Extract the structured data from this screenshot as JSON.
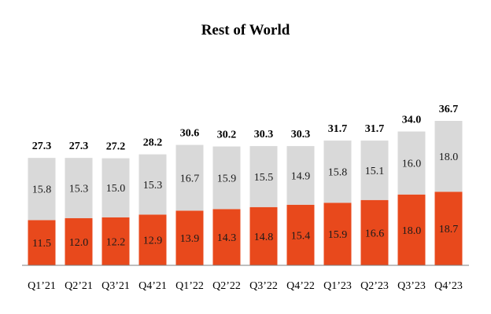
{
  "chart_data": {
    "type": "bar",
    "stacked": true,
    "title": "Rest of World",
    "categories": [
      "Q1’21",
      "Q2’21",
      "Q3’21",
      "Q4’21",
      "Q1’22",
      "Q2’22",
      "Q3’22",
      "Q4’22",
      "Q1’23",
      "Q2’23",
      "Q3’23",
      "Q4’23"
    ],
    "series": [
      {
        "values": [
          11.5,
          12.0,
          12.2,
          12.9,
          13.9,
          14.3,
          14.8,
          15.4,
          15.9,
          16.6,
          18.0,
          18.7
        ],
        "labels": [
          "11.5",
          "12.0",
          "12.2",
          "12.9",
          "13.9",
          "14.3",
          "14.8",
          "15.4",
          "15.9",
          "16.6",
          "18.0",
          "18.7"
        ],
        "color": "#E8491C"
      },
      {
        "values": [
          15.8,
          15.3,
          15.0,
          15.3,
          16.7,
          15.9,
          15.5,
          14.9,
          15.8,
          15.1,
          16.0,
          18.0
        ],
        "labels": [
          "15.8",
          "15.3",
          "15.0",
          "15.3",
          "16.7",
          "15.9",
          "15.5",
          "14.9",
          "15.8",
          "15.1",
          "16.0",
          "18.0"
        ],
        "color": "#D9D9D9"
      }
    ],
    "totals": [
      27.3,
      27.3,
      27.2,
      28.2,
      30.6,
      30.2,
      30.3,
      30.3,
      31.7,
      31.7,
      34.0,
      36.7
    ],
    "total_labels": [
      "27.3",
      "27.3",
      "27.2",
      "28.2",
      "30.6",
      "30.2",
      "30.3",
      "30.3",
      "31.7",
      "31.7",
      "34.0",
      "36.7"
    ],
    "xlabel": "",
    "ylabel": "",
    "ylim": [
      0,
      36.7
    ],
    "grid": false,
    "axis_color": "#7F7F7F"
  }
}
